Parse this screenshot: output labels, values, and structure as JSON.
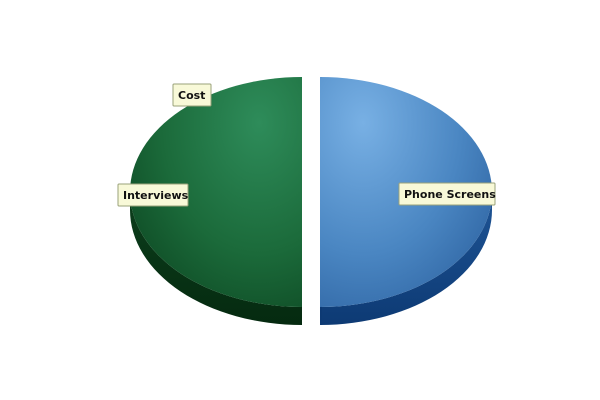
{
  "chart_data": {
    "type": "pie",
    "title": "",
    "three_d": true,
    "slices": [
      {
        "label": "Phone Screens",
        "value": 50,
        "color": "#4a88c7",
        "exploded": true
      },
      {
        "label": "Interviews",
        "value": 50,
        "color": "#1d6b3c",
        "exploded": true
      },
      {
        "label": "Cost",
        "value": 0,
        "color": "#1d6b3c",
        "exploded": false
      }
    ],
    "legend": "none"
  }
}
